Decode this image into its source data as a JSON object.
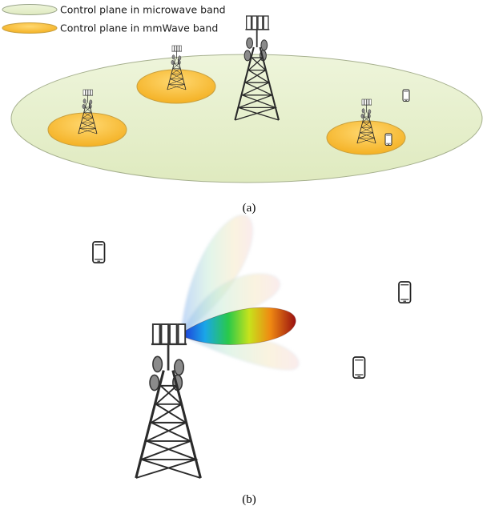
{
  "legend": {
    "microwave_label": "Control plane in microwave band",
    "mmwave_label": "Control plane in mmWave band"
  },
  "captions": {
    "a": "(a)",
    "b": "(b)"
  },
  "colors": {
    "microwave_fill": "#e4efc9",
    "microwave_stroke": "#9aa58a",
    "mmwave_fill": "#f6bb36",
    "mmwave_stroke": "#c8a040",
    "tower": "#2a2a2a"
  },
  "icons": {
    "tower": "cell-tower-icon",
    "phone": "mobile-phone-icon"
  }
}
